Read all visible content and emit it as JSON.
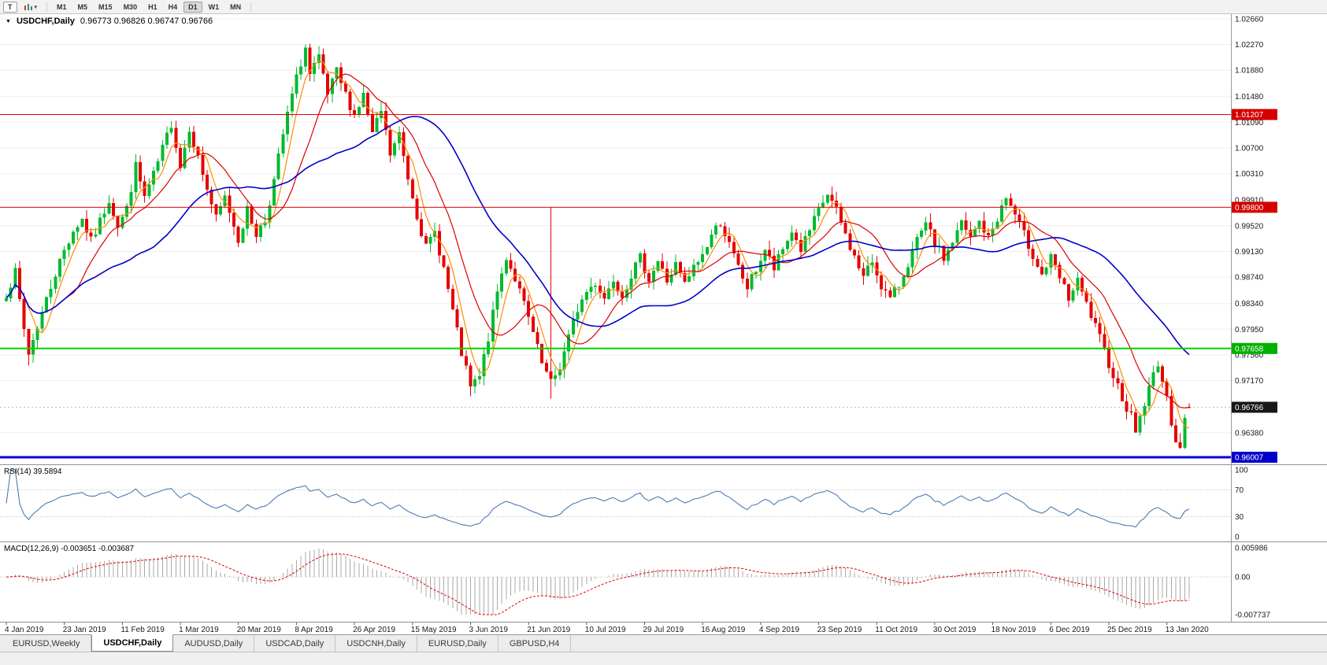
{
  "toolbar": {
    "chart_tool_label": "T",
    "timeframes": [
      "M1",
      "M5",
      "M15",
      "M30",
      "H1",
      "H4",
      "D1",
      "W1",
      "MN"
    ],
    "active_timeframe": "D1"
  },
  "chart": {
    "symbol_title": "USDCHF,Daily",
    "ohlc_text": "0.96773 0.96826 0.96747 0.96766",
    "price_scale_labels": [
      "1.02660",
      "1.02270",
      "1.01880",
      "1.01480",
      "1.01090",
      "1.00700",
      "1.00310",
      "0.99910",
      "0.99520",
      "0.99130",
      "0.98740",
      "0.98340",
      "0.97950",
      "0.97560",
      "0.97170",
      "0.96380"
    ],
    "levels": [
      {
        "name": "resistance-upper",
        "value": 1.01207,
        "label": "1.01207",
        "line_color": "#e80000",
        "tag_bg": "#d40000",
        "width": 1
      },
      {
        "name": "resistance-lower",
        "value": 0.998,
        "label": "0.99800",
        "line_color": "#e80000",
        "tag_bg": "#d40000",
        "width": 1
      },
      {
        "name": "support-green",
        "value": 0.97658,
        "label": "0.97658",
        "line_color": "#00d400",
        "tag_bg": "#00b000",
        "width": 2
      },
      {
        "name": "support-blue",
        "value": 0.96007,
        "label": "0.96007",
        "line_color": "#0202e0",
        "tag_bg": "#0000cc",
        "width": 3
      }
    ],
    "current_price": {
      "value": 0.96766,
      "label": "0.96766",
      "tag_bg": "#17181a",
      "line_color": "#bbbbbb"
    },
    "up_color": "#00bb2e",
    "down_color": "#e60000"
  },
  "rsi": {
    "label": "RSI(14) 39.5894",
    "line_color": "#4a7cb5",
    "level_lines": [
      70,
      30
    ],
    "scale": [
      {
        "label": "100",
        "value": 100
      },
      {
        "label": "70",
        "value": 70
      },
      {
        "label": "30",
        "value": 30
      },
      {
        "label": "0",
        "value": 0
      }
    ]
  },
  "macd": {
    "label": "MACD(12,26,9) -0.003651 -0.003687",
    "histogram_color": "#a8a8a8",
    "signal_color": "#dd0000",
    "scale": [
      {
        "label": "0.005986",
        "value": 0.005986
      },
      {
        "label": "0.00",
        "value": 0
      },
      {
        "label": "-0.007737",
        "value": -0.007737
      }
    ]
  },
  "dates": [
    "4 Jan 2019",
    "23 Jan 2019",
    "11 Feb 2019",
    "1 Mar 2019",
    "20 Mar 2019",
    "8 Apr 2019",
    "26 Apr 2019",
    "15 May 2019",
    "3 Jun 2019",
    "21 Jun 2019",
    "10 Jul 2019",
    "29 Jul 2019",
    "16 Aug 2019",
    "4 Sep 2019",
    "23 Sep 2019",
    "11 Oct 2019",
    "30 Oct 2019",
    "18 Nov 2019",
    "6 Dec 2019",
    "25 Dec 2019",
    "13 Jan 2020"
  ],
  "tabs": [
    {
      "label": "EURUSD,Weekly",
      "active": false
    },
    {
      "label": "USDCHF,Daily",
      "active": true
    },
    {
      "label": "AUDUSD,Daily",
      "active": false
    },
    {
      "label": "USDCAD,Daily",
      "active": false
    },
    {
      "label": "USDCNH,Daily",
      "active": false
    },
    {
      "label": "EURUSD,Daily",
      "active": false
    },
    {
      "label": "GBPUSD,H4",
      "active": false
    }
  ],
  "chart_data": {
    "type": "candlestick",
    "symbol": "USDCHF",
    "timeframe": "Daily",
    "title": "USDCHF,Daily",
    "last_candle": {
      "open": 0.96773,
      "high": 0.96826,
      "low": 0.96747,
      "close": 0.96766
    },
    "price_range_visible": {
      "min": 0.959,
      "max": 1.0273
    },
    "x_range": {
      "first_label": "4 Jan 2019",
      "last_label": "13 Jan 2020"
    },
    "bar_count": 266,
    "seed": 7,
    "noise": 0.0016,
    "wick": 0.0014,
    "min_low": 0.9613,
    "max_high": 1.0228,
    "close_anchors": [
      [
        0,
        0.985
      ],
      [
        2,
        0.988
      ],
      [
        4,
        0.9795
      ],
      [
        5,
        0.9758
      ],
      [
        7,
        0.98
      ],
      [
        9,
        0.984
      ],
      [
        11,
        0.988
      ],
      [
        13,
        0.9915
      ],
      [
        15,
        0.9945
      ],
      [
        17,
        0.9962
      ],
      [
        19,
        0.9928
      ],
      [
        21,
        0.9958
      ],
      [
        23,
        0.9992
      ],
      [
        25,
        0.9952
      ],
      [
        27,
        0.9978
      ],
      [
        29,
        1.0042
      ],
      [
        31,
        0.9995
      ],
      [
        33,
        1.0028
      ],
      [
        35,
        1.0068
      ],
      [
        37,
        1.0108
      ],
      [
        39,
        1.0042
      ],
      [
        41,
        1.0102
      ],
      [
        43,
        1.0055
      ],
      [
        45,
        1.0008
      ],
      [
        47,
        0.9962
      ],
      [
        49,
        0.9995
      ],
      [
        52,
        0.9932
      ],
      [
        54,
        0.9975
      ],
      [
        56,
        0.994
      ],
      [
        58,
        0.996
      ],
      [
        60,
        1.002
      ],
      [
        62,
        1.009
      ],
      [
        64,
        1.015
      ],
      [
        66,
        1.02
      ],
      [
        67,
        1.0222
      ],
      [
        68,
        1.018
      ],
      [
        70,
        1.0205
      ],
      [
        72,
        1.015
      ],
      [
        74,
        1.0185
      ],
      [
        76,
        1.015
      ],
      [
        78,
        1.012
      ],
      [
        80,
        1.015
      ],
      [
        82,
        1.009
      ],
      [
        84,
        1.0125
      ],
      [
        86,
        1.006
      ],
      [
        88,
        1.009
      ],
      [
        90,
        1.0025
      ],
      [
        92,
        0.997
      ],
      [
        94,
        0.9918
      ],
      [
        96,
        0.9942
      ],
      [
        98,
        0.9888
      ],
      [
        100,
        0.9822
      ],
      [
        102,
        0.9758
      ],
      [
        104,
        0.9706
      ],
      [
        106,
        0.9722
      ],
      [
        108,
        0.9782
      ],
      [
        110,
        0.9852
      ],
      [
        112,
        0.9905
      ],
      [
        114,
        0.9872
      ],
      [
        116,
        0.9832
      ],
      [
        118,
        0.9788
      ],
      [
        120,
        0.9742
      ],
      [
        122,
        0.9712
      ],
      [
        124,
        0.9738
      ],
      [
        126,
        0.9782
      ],
      [
        128,
        0.9826
      ],
      [
        130,
        0.9852
      ],
      [
        132,
        0.9866
      ],
      [
        134,
        0.9842
      ],
      [
        136,
        0.9872
      ],
      [
        138,
        0.9848
      ],
      [
        140,
        0.9878
      ],
      [
        142,
        0.9902
      ],
      [
        144,
        0.9872
      ],
      [
        146,
        0.9898
      ],
      [
        148,
        0.9868
      ],
      [
        150,
        0.9892
      ],
      [
        152,
        0.9862
      ],
      [
        154,
        0.9888
      ],
      [
        156,
        0.9908
      ],
      [
        158,
        0.9938
      ],
      [
        160,
        0.9958
      ],
      [
        162,
        0.9922
      ],
      [
        164,
        0.9888
      ],
      [
        166,
        0.9858
      ],
      [
        168,
        0.9886
      ],
      [
        170,
        0.9916
      ],
      [
        172,
        0.9886
      ],
      [
        174,
        0.9916
      ],
      [
        176,
        0.9944
      ],
      [
        178,
        0.9916
      ],
      [
        180,
        0.9944
      ],
      [
        182,
        0.9974
      ],
      [
        184,
        1.0
      ],
      [
        186,
        0.9974
      ],
      [
        188,
        0.9938
      ],
      [
        190,
        0.9904
      ],
      [
        192,
        0.9874
      ],
      [
        194,
        0.9898
      ],
      [
        196,
        0.9862
      ],
      [
        198,
        0.984
      ],
      [
        200,
        0.9862
      ],
      [
        202,
        0.9896
      ],
      [
        204,
        0.9928
      ],
      [
        206,
        0.9952
      ],
      [
        208,
        0.9926
      ],
      [
        210,
        0.9902
      ],
      [
        212,
        0.9928
      ],
      [
        214,
        0.9956
      ],
      [
        216,
        0.9932
      ],
      [
        218,
        0.9958
      ],
      [
        220,
        0.9932
      ],
      [
        222,
        0.9964
      ],
      [
        224,
        0.9994
      ],
      [
        226,
        0.9968
      ],
      [
        228,
        0.9938
      ],
      [
        230,
        0.9908
      ],
      [
        232,
        0.9878
      ],
      [
        234,
        0.9902
      ],
      [
        236,
        0.9872
      ],
      [
        238,
        0.9842
      ],
      [
        240,
        0.9866
      ],
      [
        242,
        0.9832
      ],
      [
        244,
        0.9798
      ],
      [
        246,
        0.9762
      ],
      [
        248,
        0.9726
      ],
      [
        250,
        0.9692
      ],
      [
        252,
        0.9662
      ],
      [
        253,
        0.9642
      ],
      [
        255,
        0.9682
      ],
      [
        257,
        0.9726
      ],
      [
        258,
        0.9746
      ],
      [
        259,
        0.9716
      ],
      [
        260,
        0.9686
      ],
      [
        261,
        0.9656
      ],
      [
        262,
        0.963
      ],
      [
        263,
        0.9614
      ],
      [
        264,
        0.9656
      ],
      [
        265,
        0.9677
      ]
    ],
    "overrides": [
      {
        "index": 5,
        "low": 0.974
      },
      {
        "index": 67,
        "high": 1.0227
      },
      {
        "index": 104,
        "low": 0.9693
      },
      {
        "index": 122,
        "high": 0.998,
        "low": 0.969
      },
      {
        "index": 253,
        "low": 0.9638
      },
      {
        "index": 263,
        "low": 0.9613
      }
    ],
    "moving_averages": [
      {
        "name": "fast-ma",
        "period": 5,
        "color": "#ff8c00",
        "width": 1.2
      },
      {
        "name": "medium-ma",
        "period": 13,
        "color": "#dd0000",
        "width": 1.2
      },
      {
        "name": "slow-ma",
        "period": 34,
        "color": "#0000cc",
        "width": 1.6
      }
    ],
    "indicators": [
      {
        "name": "RSI",
        "period": 14,
        "last_value": 39.5894
      },
      {
        "name": "MACD",
        "fast": 12,
        "slow": 26,
        "signal": 9,
        "last_macd": -0.003651,
        "last_signal": -0.003687
      }
    ]
  }
}
